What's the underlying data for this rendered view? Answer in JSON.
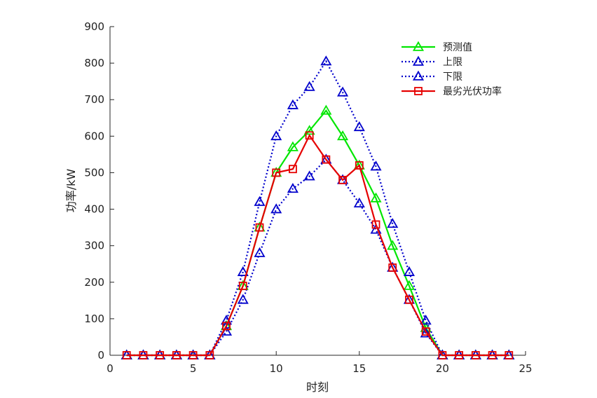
{
  "chart_data": {
    "type": "line",
    "xlabel": "时刻",
    "ylabel": "功率/kW",
    "xlim": [
      0,
      25
    ],
    "ylim": [
      0,
      900
    ],
    "xticks": [
      0,
      5,
      10,
      15,
      20,
      25
    ],
    "yticks": [
      0,
      100,
      200,
      300,
      400,
      500,
      600,
      700,
      800,
      900
    ],
    "grid": false,
    "legend_position": "top-right",
    "x": [
      1,
      2,
      3,
      4,
      5,
      6,
      7,
      8,
      9,
      10,
      11,
      12,
      13,
      14,
      15,
      16,
      17,
      18,
      19,
      20,
      21,
      22,
      23,
      24
    ],
    "series": [
      {
        "name": "预测值",
        "color": "#00e600",
        "line": "solid",
        "marker": "triangle",
        "values": [
          0,
          0,
          0,
          0,
          0,
          0,
          80,
          190,
          350,
          500,
          570,
          615,
          670,
          600,
          520,
          430,
          300,
          190,
          75,
          0,
          0,
          0,
          0,
          0
        ]
      },
      {
        "name": "上限",
        "color": "#0000cc",
        "line": "dotted",
        "marker": "triangle",
        "values": [
          0,
          0,
          0,
          0,
          0,
          0,
          95,
          228,
          420,
          600,
          685,
          735,
          805,
          720,
          625,
          517,
          360,
          228,
          95,
          0,
          0,
          0,
          0,
          0
        ]
      },
      {
        "name": "下限",
        "color": "#0000cc",
        "line": "dotted",
        "marker": "triangle",
        "values": [
          0,
          0,
          0,
          0,
          0,
          0,
          65,
          152,
          280,
          400,
          456,
          490,
          536,
          480,
          416,
          344,
          240,
          152,
          60,
          0,
          0,
          0,
          0,
          0
        ]
      },
      {
        "name": "最劣光伏功率",
        "color": "#e60000",
        "line": "solid",
        "marker": "square",
        "values": [
          0,
          0,
          0,
          0,
          0,
          0,
          80,
          190,
          350,
          500,
          510,
          602,
          536,
          480,
          520,
          358,
          240,
          152,
          65,
          0,
          0,
          0,
          0,
          0
        ]
      }
    ]
  }
}
